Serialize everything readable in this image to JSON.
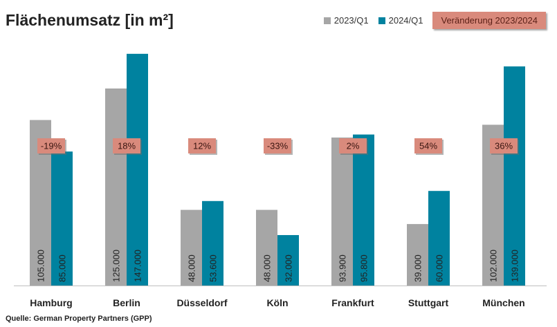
{
  "title": "Flächenumsatz  [in m²]",
  "legend": {
    "series1": "2023/Q1",
    "series2": "2024/Q1",
    "change": "Veränderung 2023/2024"
  },
  "source": "Quelle: German Property Partners (GPP)",
  "colors": {
    "series1": "#a6a6a6",
    "series2": "#00829f",
    "change_bg": "#d98a7c"
  },
  "chart_data": {
    "type": "bar",
    "categories": [
      "Hamburg",
      "Berlin",
      "Düsseldorf",
      "Köln",
      "Frankfurt",
      "Stuttgart",
      "München"
    ],
    "series": [
      {
        "name": "2023/Q1",
        "values": [
          105000,
          125000,
          48000,
          48000,
          93900,
          39000,
          102000
        ],
        "labels": [
          "105.000",
          "125.000",
          "48.000",
          "48.000",
          "93.900",
          "39.000",
          "102.000"
        ]
      },
      {
        "name": "2024/Q1",
        "values": [
          85000,
          147000,
          53600,
          32000,
          95800,
          60000,
          139000
        ],
        "labels": [
          "85.000",
          "147.000",
          "53.600",
          "32.000",
          "95.800",
          "60.000",
          "139.000"
        ]
      }
    ],
    "changes": [
      "-19%",
      "18%",
      "12%",
      "-33%",
      "2%",
      "54%",
      "36%"
    ],
    "ylim": [
      0,
      150000
    ]
  }
}
